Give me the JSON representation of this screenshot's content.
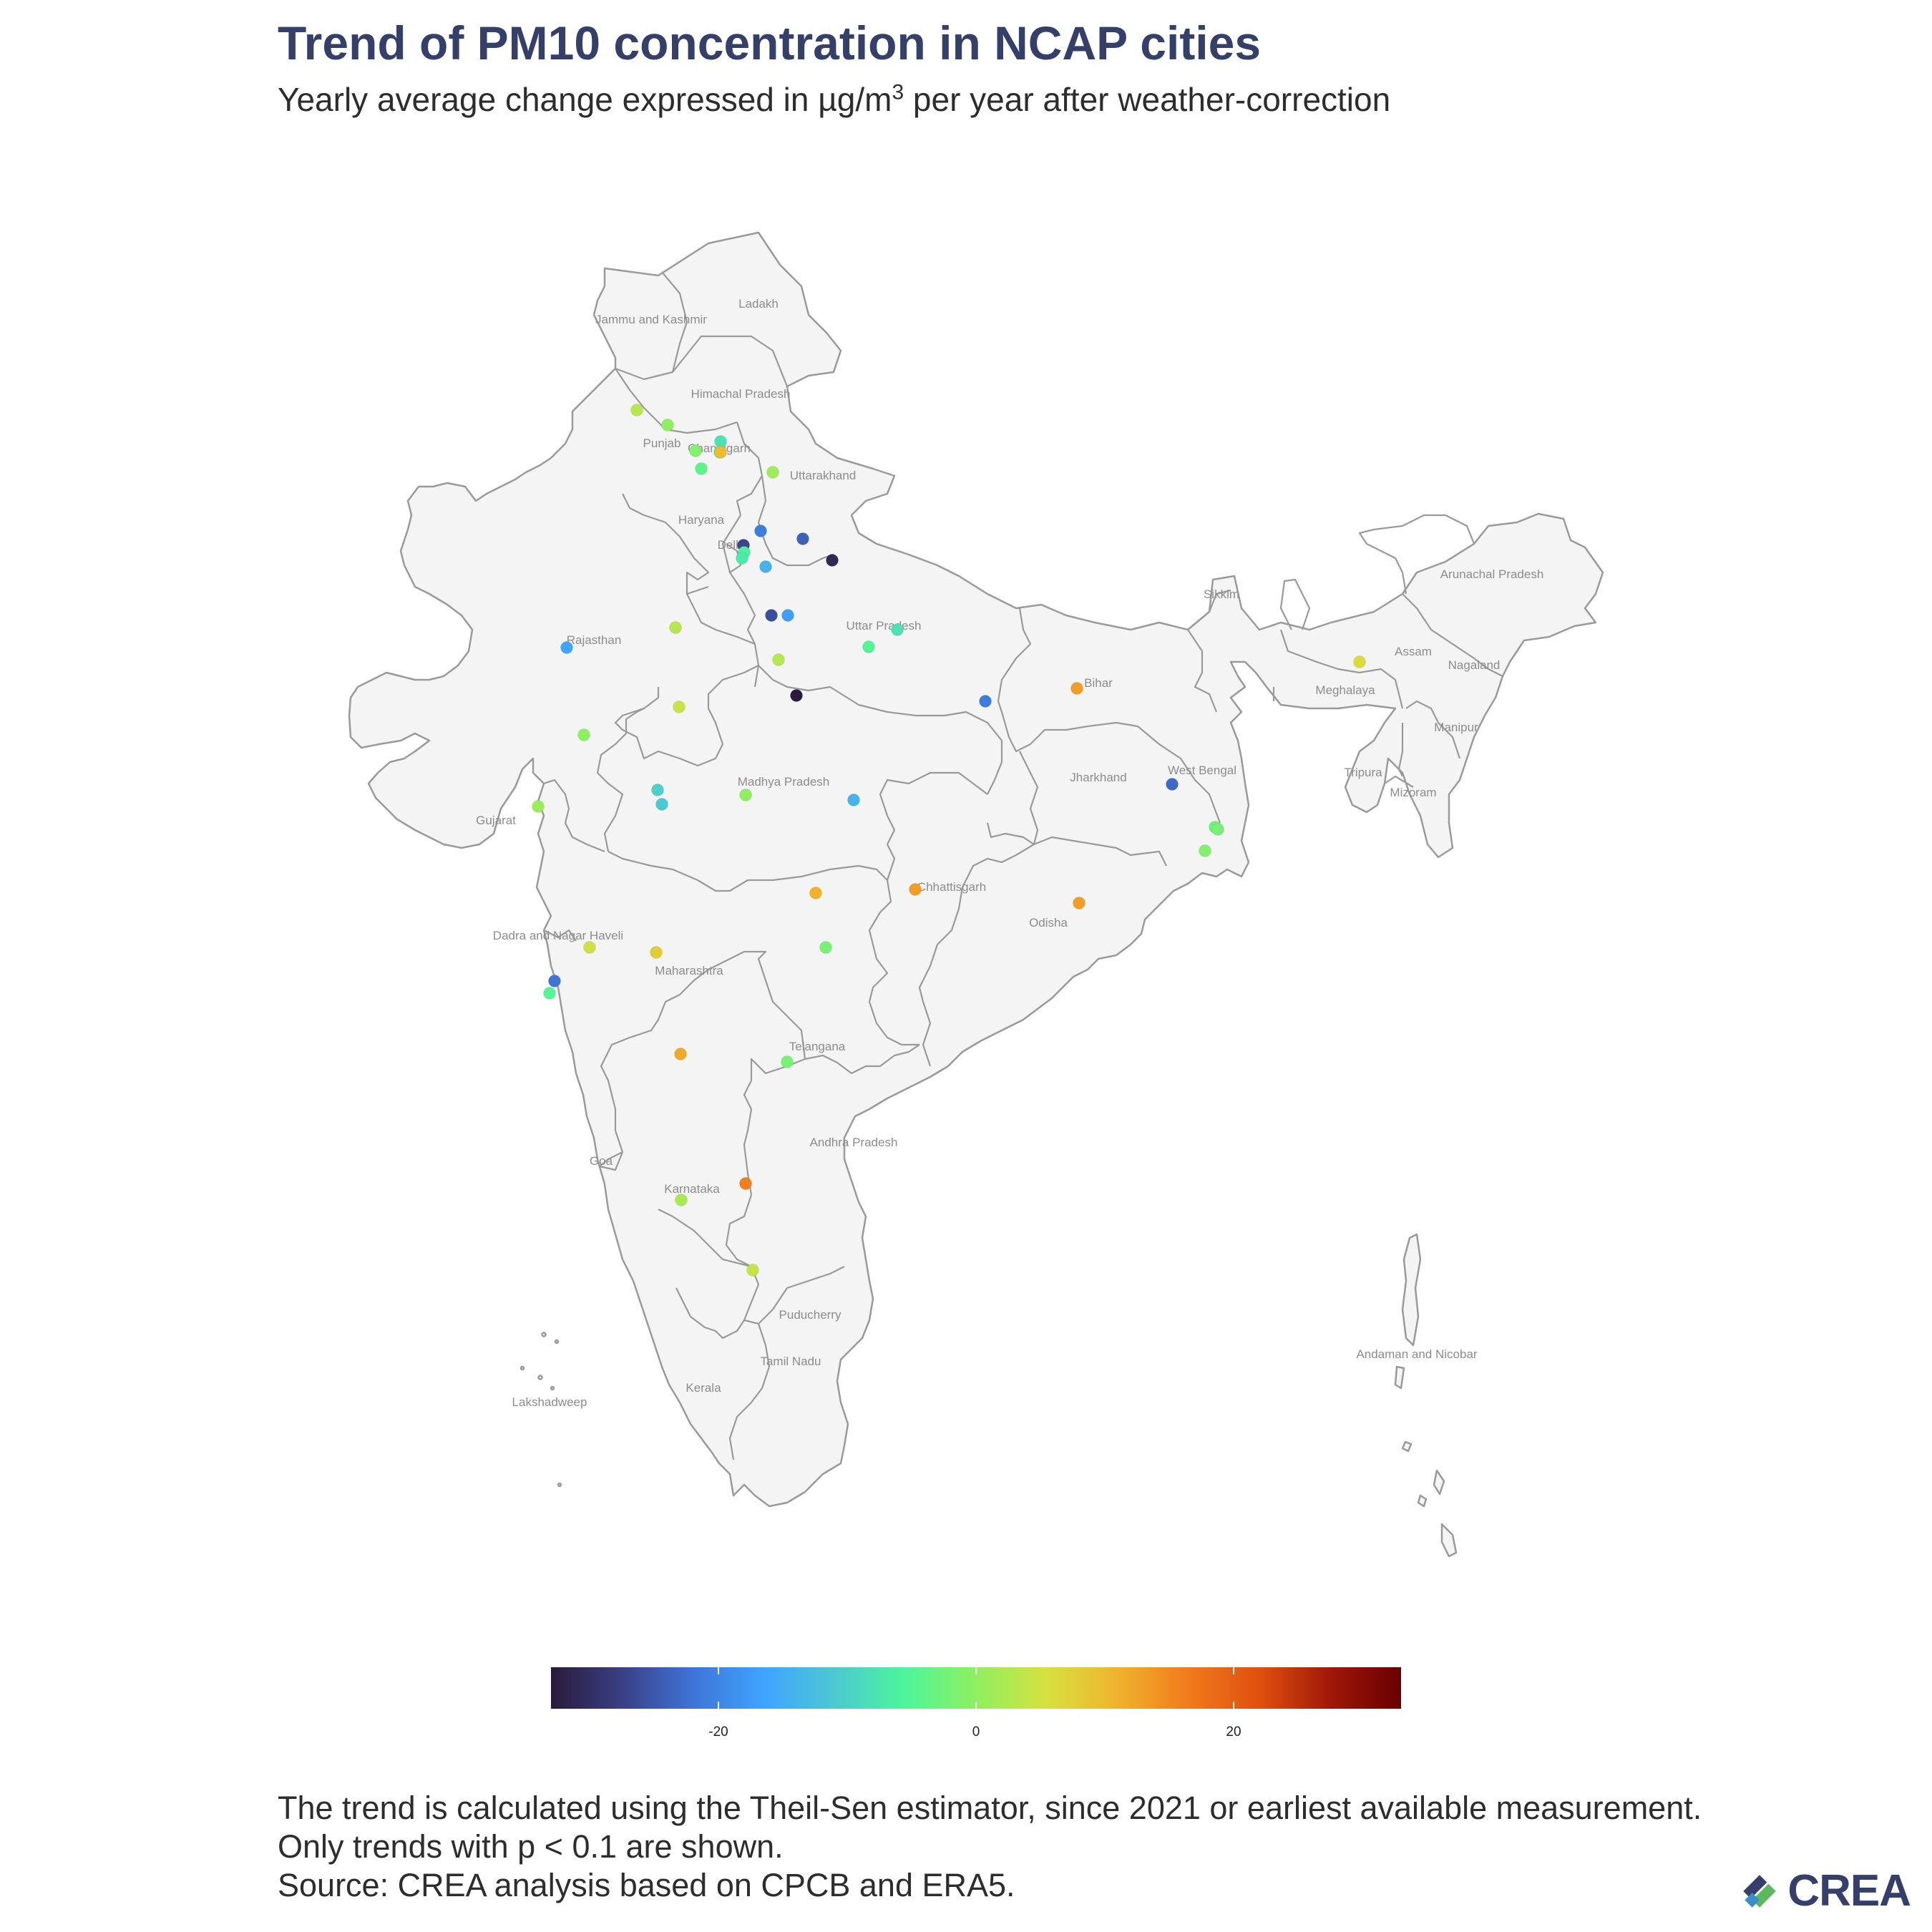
{
  "header": {
    "title": "Trend of PM10 concentration in NCAP cities",
    "subtitle_prefix": "Yearly average change expressed in µg/m",
    "subtitle_sup": "3",
    "subtitle_suffix": " per year after weather-correction"
  },
  "regions": [
    {
      "id": "ladakh",
      "label": "Ladakh"
    },
    {
      "id": "jammu",
      "label": "Jammu and Kashmir"
    },
    {
      "id": "himachal",
      "label": "Himachal Pradesh"
    },
    {
      "id": "punjab",
      "label": "Punjab"
    },
    {
      "id": "chandigarh",
      "label": "Chandigarh"
    },
    {
      "id": "uttarakhand",
      "label": "Uttarakhand"
    },
    {
      "id": "haryana",
      "label": "Haryana"
    },
    {
      "id": "delhi",
      "label": "Delhi"
    },
    {
      "id": "rajasthan",
      "label": "Rajasthan"
    },
    {
      "id": "uttar_pradesh",
      "label": "Uttar Pradesh"
    },
    {
      "id": "bihar",
      "label": "Bihar"
    },
    {
      "id": "sikkim",
      "label": "Sikkim"
    },
    {
      "id": "arunachal",
      "label": "Arunachal Pradesh"
    },
    {
      "id": "assam",
      "label": "Assam"
    },
    {
      "id": "nagaland",
      "label": "Nagaland"
    },
    {
      "id": "meghalaya",
      "label": "Meghalaya"
    },
    {
      "id": "manipur",
      "label": "Manipur"
    },
    {
      "id": "tripura",
      "label": "Tripura"
    },
    {
      "id": "mizoram",
      "label": "Mizoram"
    },
    {
      "id": "jharkhand",
      "label": "Jharkhand"
    },
    {
      "id": "west_bengal",
      "label": "West Bengal"
    },
    {
      "id": "gujarat",
      "label": "Gujarat"
    },
    {
      "id": "madhya_pradesh",
      "label": "Madhya Pradesh"
    },
    {
      "id": "chhattisgarh",
      "label": "Chhattisgarh"
    },
    {
      "id": "odisha",
      "label": "Odisha"
    },
    {
      "id": "dadra",
      "label": "Dadra and Nagar Haveli"
    },
    {
      "id": "maharashtra",
      "label": "Maharashtra"
    },
    {
      "id": "telangana",
      "label": "Telangana"
    },
    {
      "id": "goa",
      "label": "Goa"
    },
    {
      "id": "andhra",
      "label": "Andhra Pradesh"
    },
    {
      "id": "karnataka",
      "label": "Karnataka"
    },
    {
      "id": "puducherry",
      "label": "Puducherry"
    },
    {
      "id": "tamil_nadu",
      "label": "Tamil Nadu"
    },
    {
      "id": "kerala",
      "label": "Kerala"
    },
    {
      "id": "lakshadweep",
      "label": "Lakshadweep"
    },
    {
      "id": "andaman",
      "label": "Andaman and Nicobar"
    }
  ],
  "colorbar": {
    "min": -33,
    "max": 33,
    "ticks": [
      -20,
      0,
      20
    ],
    "colors": [
      "#2a1b3a",
      "#3a3f86",
      "#3f74d6",
      "#3fa3ff",
      "#4cc8d2",
      "#4ef59a",
      "#8ef060",
      "#d8e040",
      "#f0b32c",
      "#f07a1c",
      "#e0500f",
      "#a01808",
      "#6a0000"
    ]
  },
  "chart_data": {
    "type": "scatter",
    "title": "Trend of PM10 concentration in NCAP cities",
    "subtitle": "Yearly average change expressed in µg/m³ per year after weather-correction",
    "color_scale_range": [
      -33,
      33
    ],
    "color_scale_ticks": [
      -20,
      0,
      20
    ],
    "points": [
      {
        "region": "Punjab",
        "value": 3
      },
      {
        "region": "Punjab",
        "value": 0
      },
      {
        "region": "Punjab",
        "value": -1
      },
      {
        "region": "Chandigarh",
        "value": -8
      },
      {
        "region": "Chandigarh",
        "value": -6
      },
      {
        "region": "Chandigarh",
        "value": 10
      },
      {
        "region": "Punjab",
        "value": -4
      },
      {
        "region": "Uttarakhand",
        "value": 1
      },
      {
        "region": "Haryana",
        "value": -21
      },
      {
        "region": "Delhi",
        "value": -27
      },
      {
        "region": "Delhi",
        "value": -6
      },
      {
        "region": "Delhi",
        "value": -7
      },
      {
        "region": "Uttar Pradesh",
        "value": -24
      },
      {
        "region": "Uttar Pradesh",
        "value": -31
      },
      {
        "region": "Uttar Pradesh",
        "value": -14
      },
      {
        "region": "Uttar Pradesh",
        "value": -26
      },
      {
        "region": "Uttar Pradesh",
        "value": -17
      },
      {
        "region": "Rajasthan",
        "value": 3
      },
      {
        "region": "Uttar Pradesh",
        "value": -5
      },
      {
        "region": "Uttar Pradesh",
        "value": -8
      },
      {
        "region": "Rajasthan",
        "value": -16
      },
      {
        "region": "Uttar Pradesh",
        "value": 3
      },
      {
        "region": "Uttar Pradesh",
        "value": -33
      },
      {
        "region": "Rajasthan",
        "value": 4
      },
      {
        "region": "Uttar Pradesh",
        "value": -21
      },
      {
        "region": "Bihar",
        "value": 13
      },
      {
        "region": "Assam",
        "value": 6
      },
      {
        "region": "Rajasthan",
        "value": 0
      },
      {
        "region": "Madhya Pradesh",
        "value": -10
      },
      {
        "region": "Madhya Pradesh",
        "value": -11
      },
      {
        "region": "Madhya Pradesh",
        "value": 0
      },
      {
        "region": "Madhya Pradesh",
        "value": -14
      },
      {
        "region": "Gujarat",
        "value": 1
      },
      {
        "region": "West Bengal",
        "value": -23
      },
      {
        "region": "West Bengal",
        "value": -3
      },
      {
        "region": "West Bengal",
        "value": -2
      },
      {
        "region": "West Bengal",
        "value": -1
      },
      {
        "region": "Maharashtra",
        "value": 11
      },
      {
        "region": "Chhattisgarh",
        "value": 13
      },
      {
        "region": "Odisha",
        "value": 13
      },
      {
        "region": "Maharashtra",
        "value": 5
      },
      {
        "region": "Maharashtra",
        "value": 8
      },
      {
        "region": "Maharashtra",
        "value": -2
      },
      {
        "region": "Maharashtra",
        "value": -22
      },
      {
        "region": "Maharashtra",
        "value": -5
      },
      {
        "region": "Maharashtra",
        "value": 12
      },
      {
        "region": "Telangana",
        "value": -2
      },
      {
        "region": "Andhra Pradesh",
        "value": 16
      },
      {
        "region": "Karnataka",
        "value": 2
      },
      {
        "region": "Tamil Nadu",
        "value": 4
      }
    ]
  },
  "footer": {
    "line1": "The trend is calculated using the Theil-Sen estimator, since 2021 or earliest available measurement.",
    "line2": "Only trends with p < 0.1 are shown.",
    "line3": "Source: CREA analysis based on CPCB and ERA5."
  },
  "logo": {
    "text": "CREA",
    "mark_colors": [
      "#35406a",
      "#5cb85c",
      "#3a8fc7"
    ]
  }
}
